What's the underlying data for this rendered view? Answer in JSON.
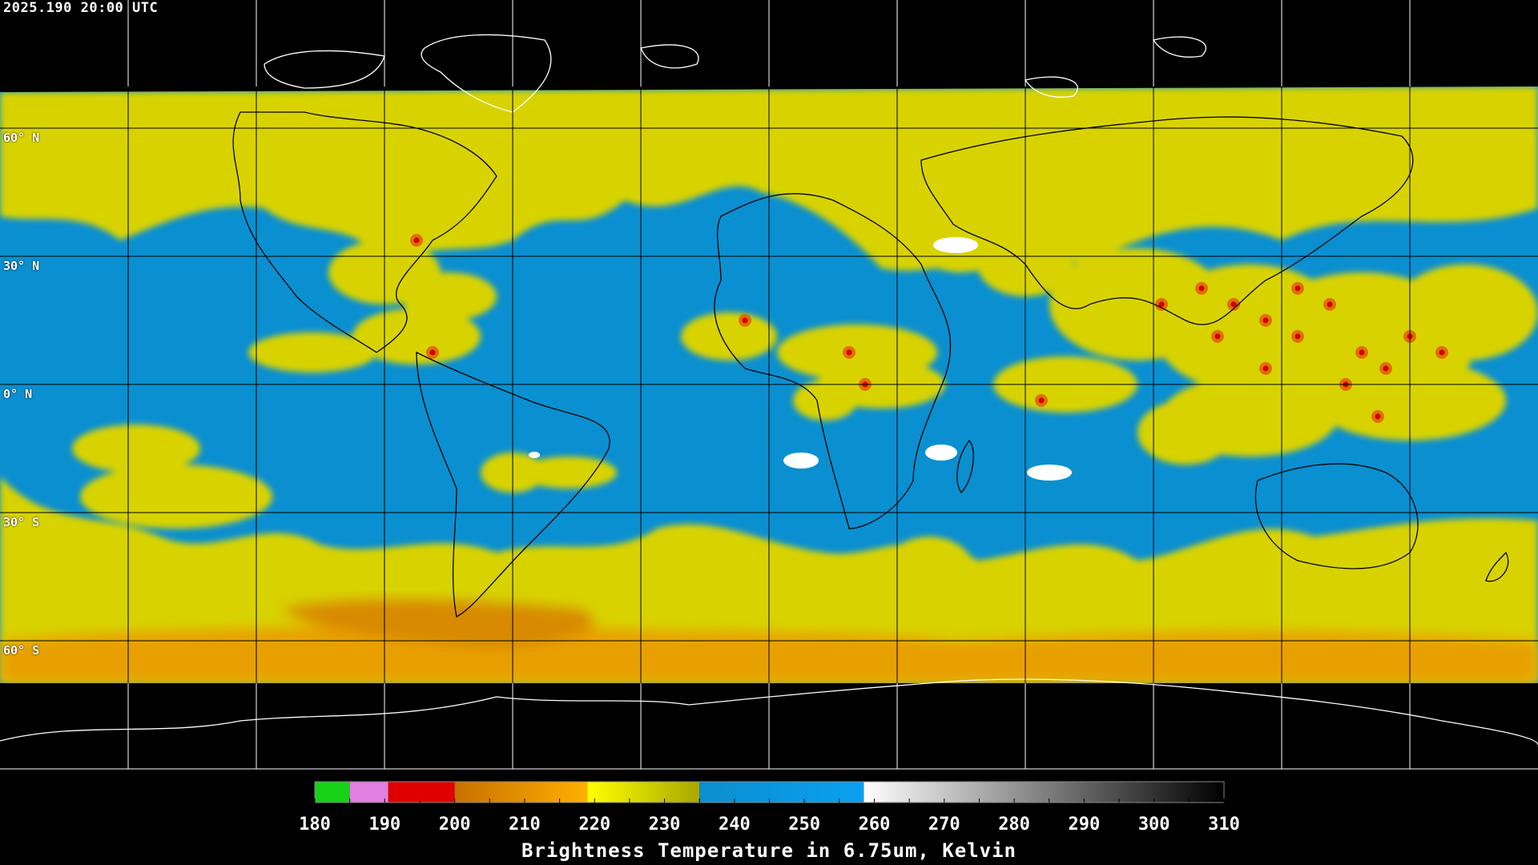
{
  "header": {
    "timestamp": "2025.190 20:00 UTC"
  },
  "map": {
    "lat_labels": [
      "60° N",
      "30° N",
      "0° N",
      "30° S",
      "60° S"
    ],
    "surface_color": "#0a8fd0",
    "moisture_color": "#d8d300",
    "land_outline_color": "#000000",
    "ice_outline_color": "#ffffff",
    "grid_color": "#000000"
  },
  "colorbar": {
    "title": "Brightness Temperature in 6.75um, Kelvin",
    "ticks": [
      "180",
      "190",
      "200",
      "210",
      "220",
      "230",
      "240",
      "250",
      "260",
      "270",
      "280",
      "290",
      "300",
      "310"
    ],
    "range": [
      180,
      310
    ],
    "bands": [
      {
        "from": 180,
        "to": 185,
        "color": "#17d117"
      },
      {
        "from": 185,
        "to": 190.5,
        "color": "#e080e0"
      },
      {
        "from": 190.5,
        "to": 200,
        "color": "#e00000"
      },
      {
        "from": 200,
        "to": 219,
        "color": "#c87000",
        "to_color": "#ffb000"
      },
      {
        "from": 219,
        "to": 235,
        "color": "#ffff00",
        "to_color": "#a8a800"
      },
      {
        "from": 235,
        "to": 258.5,
        "color": "#0a8fd0",
        "to_color": "#0aa0f0"
      },
      {
        "from": 258.5,
        "to": 310,
        "color": "#ffffff",
        "to_color": "#000000"
      }
    ]
  }
}
